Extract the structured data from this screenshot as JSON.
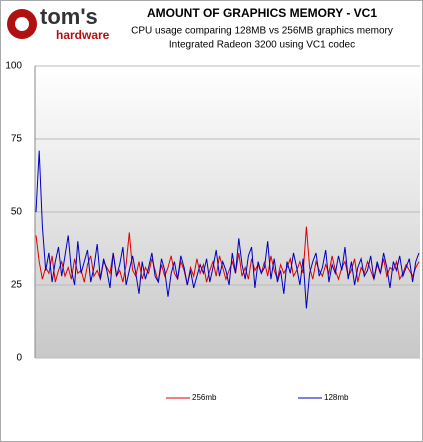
{
  "logo": {
    "top": "tom's",
    "bottom": "hardware"
  },
  "chart_data": {
    "type": "line",
    "title": "AMOUNT OF GRAPHICS MEMORY - VC1",
    "subtitle": [
      "CPU usage comparing 128MB vs 256MB graphics memory",
      "Integrated Radeon 3200 using VC1 codec"
    ],
    "ylim": [
      0,
      100
    ],
    "yticks": [
      0,
      25,
      50,
      75,
      100
    ],
    "grid": true,
    "series": [
      {
        "name": "256mb",
        "color": "#e00000",
        "values": [
          42,
          33,
          27,
          31,
          29,
          35,
          26,
          30,
          33,
          28,
          31,
          27,
          34,
          29,
          30,
          26,
          32,
          35,
          28,
          30,
          27,
          33,
          31,
          29,
          36,
          28,
          30,
          26,
          32,
          43,
          30,
          28,
          33,
          27,
          31,
          29,
          34,
          30,
          26,
          32,
          28,
          31,
          35,
          29,
          27,
          33,
          30,
          25,
          31,
          28,
          34,
          29,
          32,
          26,
          30,
          33,
          28,
          35,
          31,
          27,
          30,
          33,
          29,
          36,
          28,
          31,
          27,
          34,
          30,
          32,
          29,
          33,
          28,
          35,
          30,
          27,
          32,
          29,
          31,
          34,
          28,
          30,
          33,
          29,
          45,
          31,
          27,
          33,
          30,
          28,
          32,
          29,
          35,
          30,
          27,
          31,
          33,
          28,
          30,
          34,
          26,
          31,
          29,
          33,
          30,
          27,
          32,
          29,
          34,
          28,
          31,
          30,
          33,
          27,
          29,
          32,
          30,
          28,
          31,
          33
        ]
      },
      {
        "name": "128mb",
        "color": "#0000c0",
        "values": [
          50,
          71,
          45,
          30,
          36,
          26,
          33,
          38,
          28,
          35,
          42,
          30,
          25,
          40,
          29,
          33,
          37,
          26,
          31,
          39,
          27,
          34,
          30,
          24,
          36,
          28,
          32,
          38,
          25,
          30,
          35,
          29,
          22,
          33,
          27,
          31,
          36,
          28,
          26,
          34,
          30,
          21,
          29,
          33,
          27,
          35,
          31,
          25,
          30,
          24,
          28,
          32,
          29,
          34,
          26,
          31,
          37,
          28,
          33,
          30,
          25,
          36,
          29,
          41,
          32,
          27,
          35,
          38,
          24,
          33,
          29,
          31,
          40,
          27,
          34,
          26,
          30,
          22,
          33,
          29,
          36,
          31,
          25,
          34,
          17,
          29,
          33,
          36,
          28,
          31,
          37,
          26,
          32,
          29,
          35,
          30,
          38,
          27,
          33,
          25,
          31,
          34,
          28,
          30,
          35,
          27,
          33,
          29,
          36,
          31,
          24,
          33,
          30,
          35,
          28,
          31,
          34,
          26,
          33,
          36
        ]
      }
    ]
  }
}
